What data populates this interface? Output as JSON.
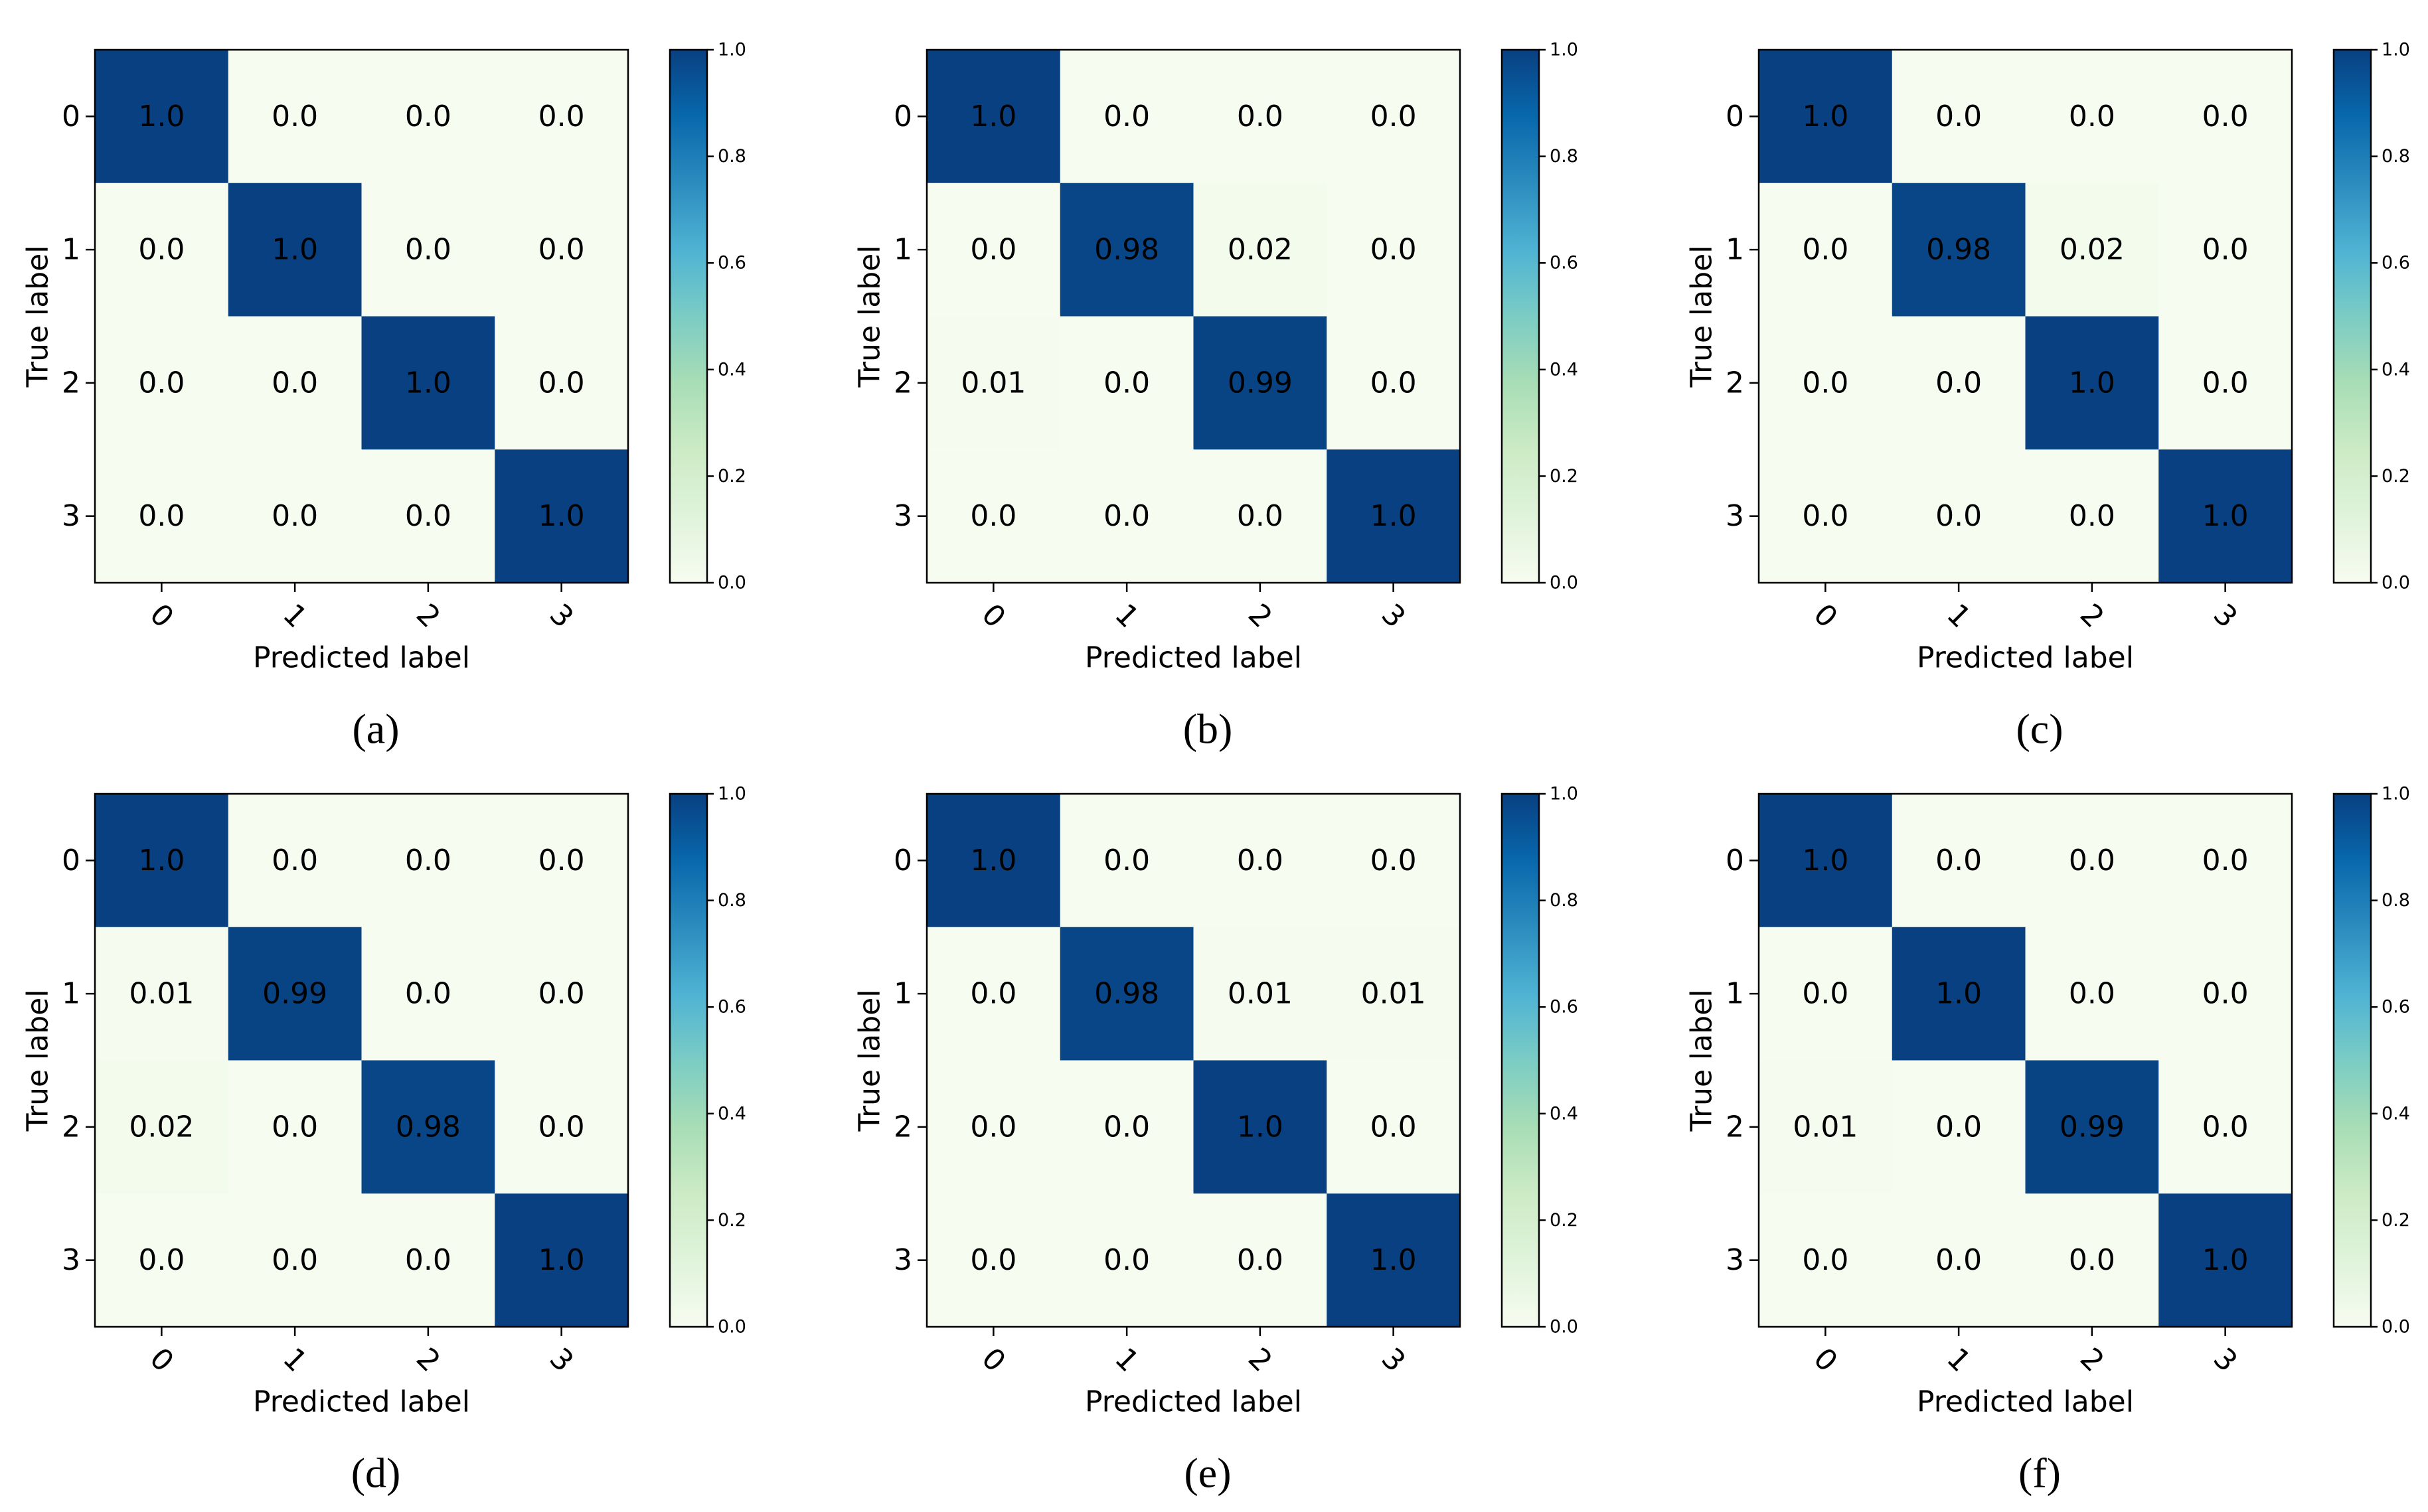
{
  "figure": {
    "panels": 6,
    "layout": "2 rows x 3 columns"
  },
  "colors": {
    "background": "#ffffff",
    "axes_frame": "#000000",
    "text_dark": "#000000",
    "cmap_GnBu": [
      "#f7fcf0",
      "#e0f3db",
      "#ccebc5",
      "#a8ddb5",
      "#7bccc4",
      "#4eb3d3",
      "#2b8cbe",
      "#0868ac",
      "#084081"
    ]
  },
  "chart_data": [
    {
      "type": "heatmap",
      "caption": "(a)",
      "xlabel": "Predicted label",
      "ylabel": "True label",
      "x_categories": [
        "0",
        "1",
        "2",
        "3"
      ],
      "y_categories": [
        "0",
        "1",
        "2",
        "3"
      ],
      "values": [
        [
          1.0,
          0.0,
          0.0,
          0.0
        ],
        [
          0.0,
          1.0,
          0.0,
          0.0
        ],
        [
          0.0,
          0.0,
          1.0,
          0.0
        ],
        [
          0.0,
          0.0,
          0.0,
          1.0
        ]
      ],
      "cell_labels": [
        [
          "1.0",
          "0.0",
          "0.0",
          "0.0"
        ],
        [
          "0.0",
          "1.0",
          "0.0",
          "0.0"
        ],
        [
          "0.0",
          "0.0",
          "1.0",
          "0.0"
        ],
        [
          "0.0",
          "0.0",
          "0.0",
          "1.0"
        ]
      ],
      "colorbar": {
        "range": [
          0.0,
          1.0
        ],
        "ticks": [
          "0.0",
          "0.2",
          "0.4",
          "0.6",
          "0.8",
          "1.0"
        ]
      }
    },
    {
      "type": "heatmap",
      "caption": "(b)",
      "xlabel": "Predicted label",
      "ylabel": "True label",
      "x_categories": [
        "0",
        "1",
        "2",
        "3"
      ],
      "y_categories": [
        "0",
        "1",
        "2",
        "3"
      ],
      "values": [
        [
          1.0,
          0.0,
          0.0,
          0.0
        ],
        [
          0.0,
          0.98,
          0.02,
          0.0
        ],
        [
          0.01,
          0.0,
          0.99,
          0.0
        ],
        [
          0.0,
          0.0,
          0.0,
          1.0
        ]
      ],
      "cell_labels": [
        [
          "1.0",
          "0.0",
          "0.0",
          "0.0"
        ],
        [
          "0.0",
          "0.98",
          "0.02",
          "0.0"
        ],
        [
          "0.01",
          "0.0",
          "0.99",
          "0.0"
        ],
        [
          "0.0",
          "0.0",
          "0.0",
          "1.0"
        ]
      ],
      "colorbar": {
        "range": [
          0.0,
          1.0
        ],
        "ticks": [
          "0.0",
          "0.2",
          "0.4",
          "0.6",
          "0.8",
          "1.0"
        ]
      }
    },
    {
      "type": "heatmap",
      "caption": "(c)",
      "xlabel": "Predicted label",
      "ylabel": "True label",
      "x_categories": [
        "0",
        "1",
        "2",
        "3"
      ],
      "y_categories": [
        "0",
        "1",
        "2",
        "3"
      ],
      "values": [
        [
          1.0,
          0.0,
          0.0,
          0.0
        ],
        [
          0.0,
          0.98,
          0.02,
          0.0
        ],
        [
          0.0,
          0.0,
          1.0,
          0.0
        ],
        [
          0.0,
          0.0,
          0.0,
          1.0
        ]
      ],
      "cell_labels": [
        [
          "1.0",
          "0.0",
          "0.0",
          "0.0"
        ],
        [
          "0.0",
          "0.98",
          "0.02",
          "0.0"
        ],
        [
          "0.0",
          "0.0",
          "1.0",
          "0.0"
        ],
        [
          "0.0",
          "0.0",
          "0.0",
          "1.0"
        ]
      ],
      "colorbar": {
        "range": [
          0.0,
          1.0
        ],
        "ticks": [
          "0.0",
          "0.2",
          "0.4",
          "0.6",
          "0.8",
          "1.0"
        ]
      }
    },
    {
      "type": "heatmap",
      "caption": "(d)",
      "xlabel": "Predicted label",
      "ylabel": "True label",
      "x_categories": [
        "0",
        "1",
        "2",
        "3"
      ],
      "y_categories": [
        "0",
        "1",
        "2",
        "3"
      ],
      "values": [
        [
          1.0,
          0.0,
          0.0,
          0.0
        ],
        [
          0.01,
          0.99,
          0.0,
          0.0
        ],
        [
          0.02,
          0.0,
          0.98,
          0.0
        ],
        [
          0.0,
          0.0,
          0.0,
          1.0
        ]
      ],
      "cell_labels": [
        [
          "1.0",
          "0.0",
          "0.0",
          "0.0"
        ],
        [
          "0.01",
          "0.99",
          "0.0",
          "0.0"
        ],
        [
          "0.02",
          "0.0",
          "0.98",
          "0.0"
        ],
        [
          "0.0",
          "0.0",
          "0.0",
          "1.0"
        ]
      ],
      "colorbar": {
        "range": [
          0.0,
          1.0
        ],
        "ticks": [
          "0.0",
          "0.2",
          "0.4",
          "0.6",
          "0.8",
          "1.0"
        ]
      }
    },
    {
      "type": "heatmap",
      "caption": "(e)",
      "xlabel": "Predicted label",
      "ylabel": "True label",
      "x_categories": [
        "0",
        "1",
        "2",
        "3"
      ],
      "y_categories": [
        "0",
        "1",
        "2",
        "3"
      ],
      "values": [
        [
          1.0,
          0.0,
          0.0,
          0.0
        ],
        [
          0.0,
          0.98,
          0.01,
          0.01
        ],
        [
          0.0,
          0.0,
          1.0,
          0.0
        ],
        [
          0.0,
          0.0,
          0.0,
          1.0
        ]
      ],
      "cell_labels": [
        [
          "1.0",
          "0.0",
          "0.0",
          "0.0"
        ],
        [
          "0.0",
          "0.98",
          "0.01",
          "0.01"
        ],
        [
          "0.0",
          "0.0",
          "1.0",
          "0.0"
        ],
        [
          "0.0",
          "0.0",
          "0.0",
          "1.0"
        ]
      ],
      "colorbar": {
        "range": [
          0.0,
          1.0
        ],
        "ticks": [
          "0.0",
          "0.2",
          "0.4",
          "0.6",
          "0.8",
          "1.0"
        ]
      }
    },
    {
      "type": "heatmap",
      "caption": "(f)",
      "xlabel": "Predicted label",
      "ylabel": "True label",
      "x_categories": [
        "0",
        "1",
        "2",
        "3"
      ],
      "y_categories": [
        "0",
        "1",
        "2",
        "3"
      ],
      "values": [
        [
          1.0,
          0.0,
          0.0,
          0.0
        ],
        [
          0.0,
          1.0,
          0.0,
          0.0
        ],
        [
          0.01,
          0.0,
          0.99,
          0.0
        ],
        [
          0.0,
          0.0,
          0.0,
          1.0
        ]
      ],
      "cell_labels": [
        [
          "1.0",
          "0.0",
          "0.0",
          "0.0"
        ],
        [
          "0.0",
          "1.0",
          "0.0",
          "0.0"
        ],
        [
          "0.01",
          "0.0",
          "0.99",
          "0.0"
        ],
        [
          "0.0",
          "0.0",
          "0.0",
          "1.0"
        ]
      ],
      "colorbar": {
        "range": [
          0.0,
          1.0
        ],
        "ticks": [
          "0.0",
          "0.2",
          "0.4",
          "0.6",
          "0.8",
          "1.0"
        ]
      }
    }
  ]
}
